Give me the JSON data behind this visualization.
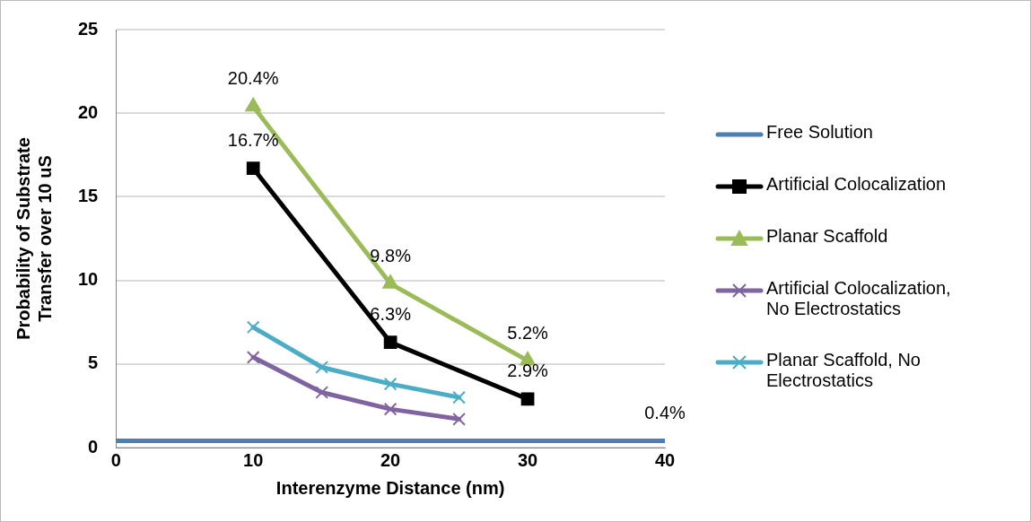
{
  "chart_data": {
    "type": "line",
    "xlabel": "Interenzyme Distance (nm)",
    "ylabel": "Probability of Substrate Transfer over 10 uS",
    "xlim": [
      0,
      40
    ],
    "xticks": [
      0,
      10,
      20,
      30,
      40
    ],
    "ylim": [
      0,
      25
    ],
    "yticks": [
      0,
      5,
      10,
      15,
      20,
      25
    ],
    "grid": "y",
    "legend": "right",
    "line_style": "solid",
    "series": [
      {
        "name": "Free Solution",
        "color": "#4a7ebb",
        "marker": "none",
        "x": [
          0,
          40
        ],
        "values": [
          0.4,
          0.4
        ],
        "value_labels": [
          null,
          "0.4%"
        ]
      },
      {
        "name": "Artificial Colocalization",
        "color": "#000000",
        "marker": "square",
        "x": [
          10,
          20,
          30
        ],
        "values": [
          16.7,
          6.3,
          2.9
        ],
        "value_labels": [
          "16.7%",
          "6.3%",
          "2.9%"
        ]
      },
      {
        "name": "Planar Scaffold",
        "color": "#9bbb59",
        "marker": "triangle",
        "x": [
          10,
          20,
          30
        ],
        "values": [
          20.4,
          9.8,
          5.2
        ],
        "value_labels": [
          "20.4%",
          "9.8%",
          "5.2%"
        ]
      },
      {
        "name": "Artificial Colocalization, No Electrostatics",
        "color": "#8064a2",
        "marker": "cross",
        "x": [
          10,
          15,
          20,
          25
        ],
        "values": [
          5.4,
          3.3,
          2.3,
          1.7
        ]
      },
      {
        "name": "Planar Scaffold, No Electrostatics",
        "color": "#4bacc6",
        "marker": "cross",
        "x": [
          10,
          15,
          20,
          25
        ],
        "values": [
          7.2,
          4.8,
          3.8,
          3.0
        ]
      }
    ]
  }
}
